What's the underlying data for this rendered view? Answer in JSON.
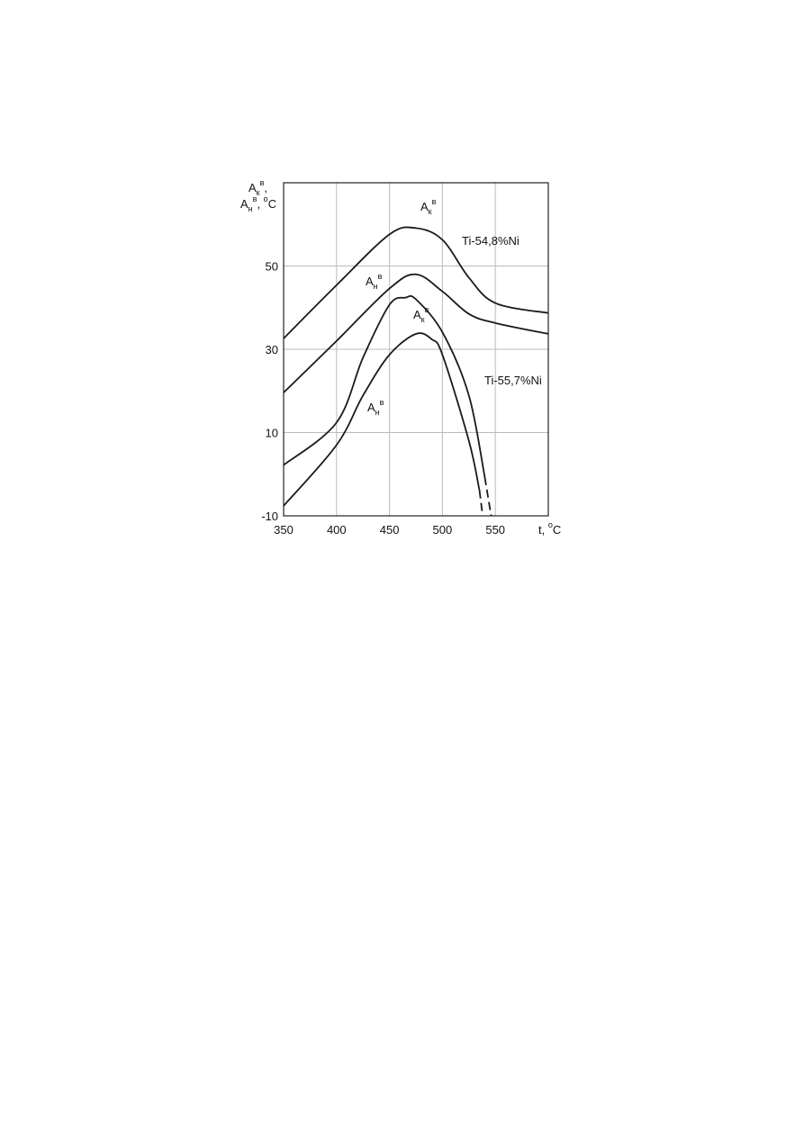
{
  "chart_data": {
    "type": "line",
    "xlim": [
      350,
      600
    ],
    "ylim": [
      -10,
      70
    ],
    "xticks": [
      350,
      400,
      450,
      500,
      550
    ],
    "yticks": [
      -10,
      10,
      30,
      50
    ],
    "grid": true,
    "color": "#1a1a1a",
    "y_label": [
      [
        {
          "text": "A"
        },
        {
          "sub": "к"
        },
        {
          "sup": "в"
        },
        {
          "text": ","
        }
      ],
      [
        {
          "text": "A"
        },
        {
          "sub": "н"
        },
        {
          "sup": "в"
        },
        {
          "text": ", "
        },
        {
          "sup": "o"
        },
        {
          "text": "C"
        }
      ]
    ],
    "x_label": [
      {
        "text": "t, "
      },
      {
        "sup": "o"
      },
      {
        "text": "C"
      }
    ],
    "series": [
      {
        "x": [
          350,
          400,
          450,
          475,
          500,
          525,
          550,
          600
        ],
        "values": [
          32.6,
          45.4,
          57.6,
          59.1,
          56.3,
          47.2,
          41.1,
          38.7
        ]
      },
      {
        "x": [
          350,
          400,
          450,
          475,
          500,
          525,
          550,
          600
        ],
        "values": [
          19.6,
          32,
          44.6,
          48,
          43.9,
          38.5,
          36.3,
          33.7
        ]
      },
      {
        "x": [
          350,
          400,
          425,
          450,
          465,
          475,
          500,
          525,
          540,
          546
        ],
        "values": [
          2.2,
          12.4,
          28,
          40.7,
          42.4,
          42,
          34.1,
          18.9,
          -0.7,
          -10
        ],
        "dashed_after": 8
      },
      {
        "x": [
          350,
          400,
          425,
          450,
          475,
          490,
          500,
          525,
          535,
          538
        ],
        "values": [
          -7.6,
          7,
          18.9,
          28.7,
          33.7,
          32.4,
          28.7,
          8,
          -3.9,
          -10
        ],
        "dashed_after": 8
      }
    ],
    "annotations": [
      [
        {
          "text": "A"
        },
        {
          "sub": "к"
        },
        {
          "sup": "в"
        }
      ],
      [
        {
          "text": "Ti-54,8%Ni"
        }
      ],
      [
        {
          "text": "A"
        },
        {
          "sub": "н"
        },
        {
          "sup": "в"
        }
      ],
      [
        {
          "text": "A"
        },
        {
          "sub": "к"
        },
        {
          "sup": "в"
        }
      ],
      [
        {
          "text": "Ti-55,7%Ni"
        }
      ],
      [
        {
          "text": "A"
        },
        {
          "sub": "н"
        },
        {
          "sup": "в"
        }
      ]
    ]
  }
}
